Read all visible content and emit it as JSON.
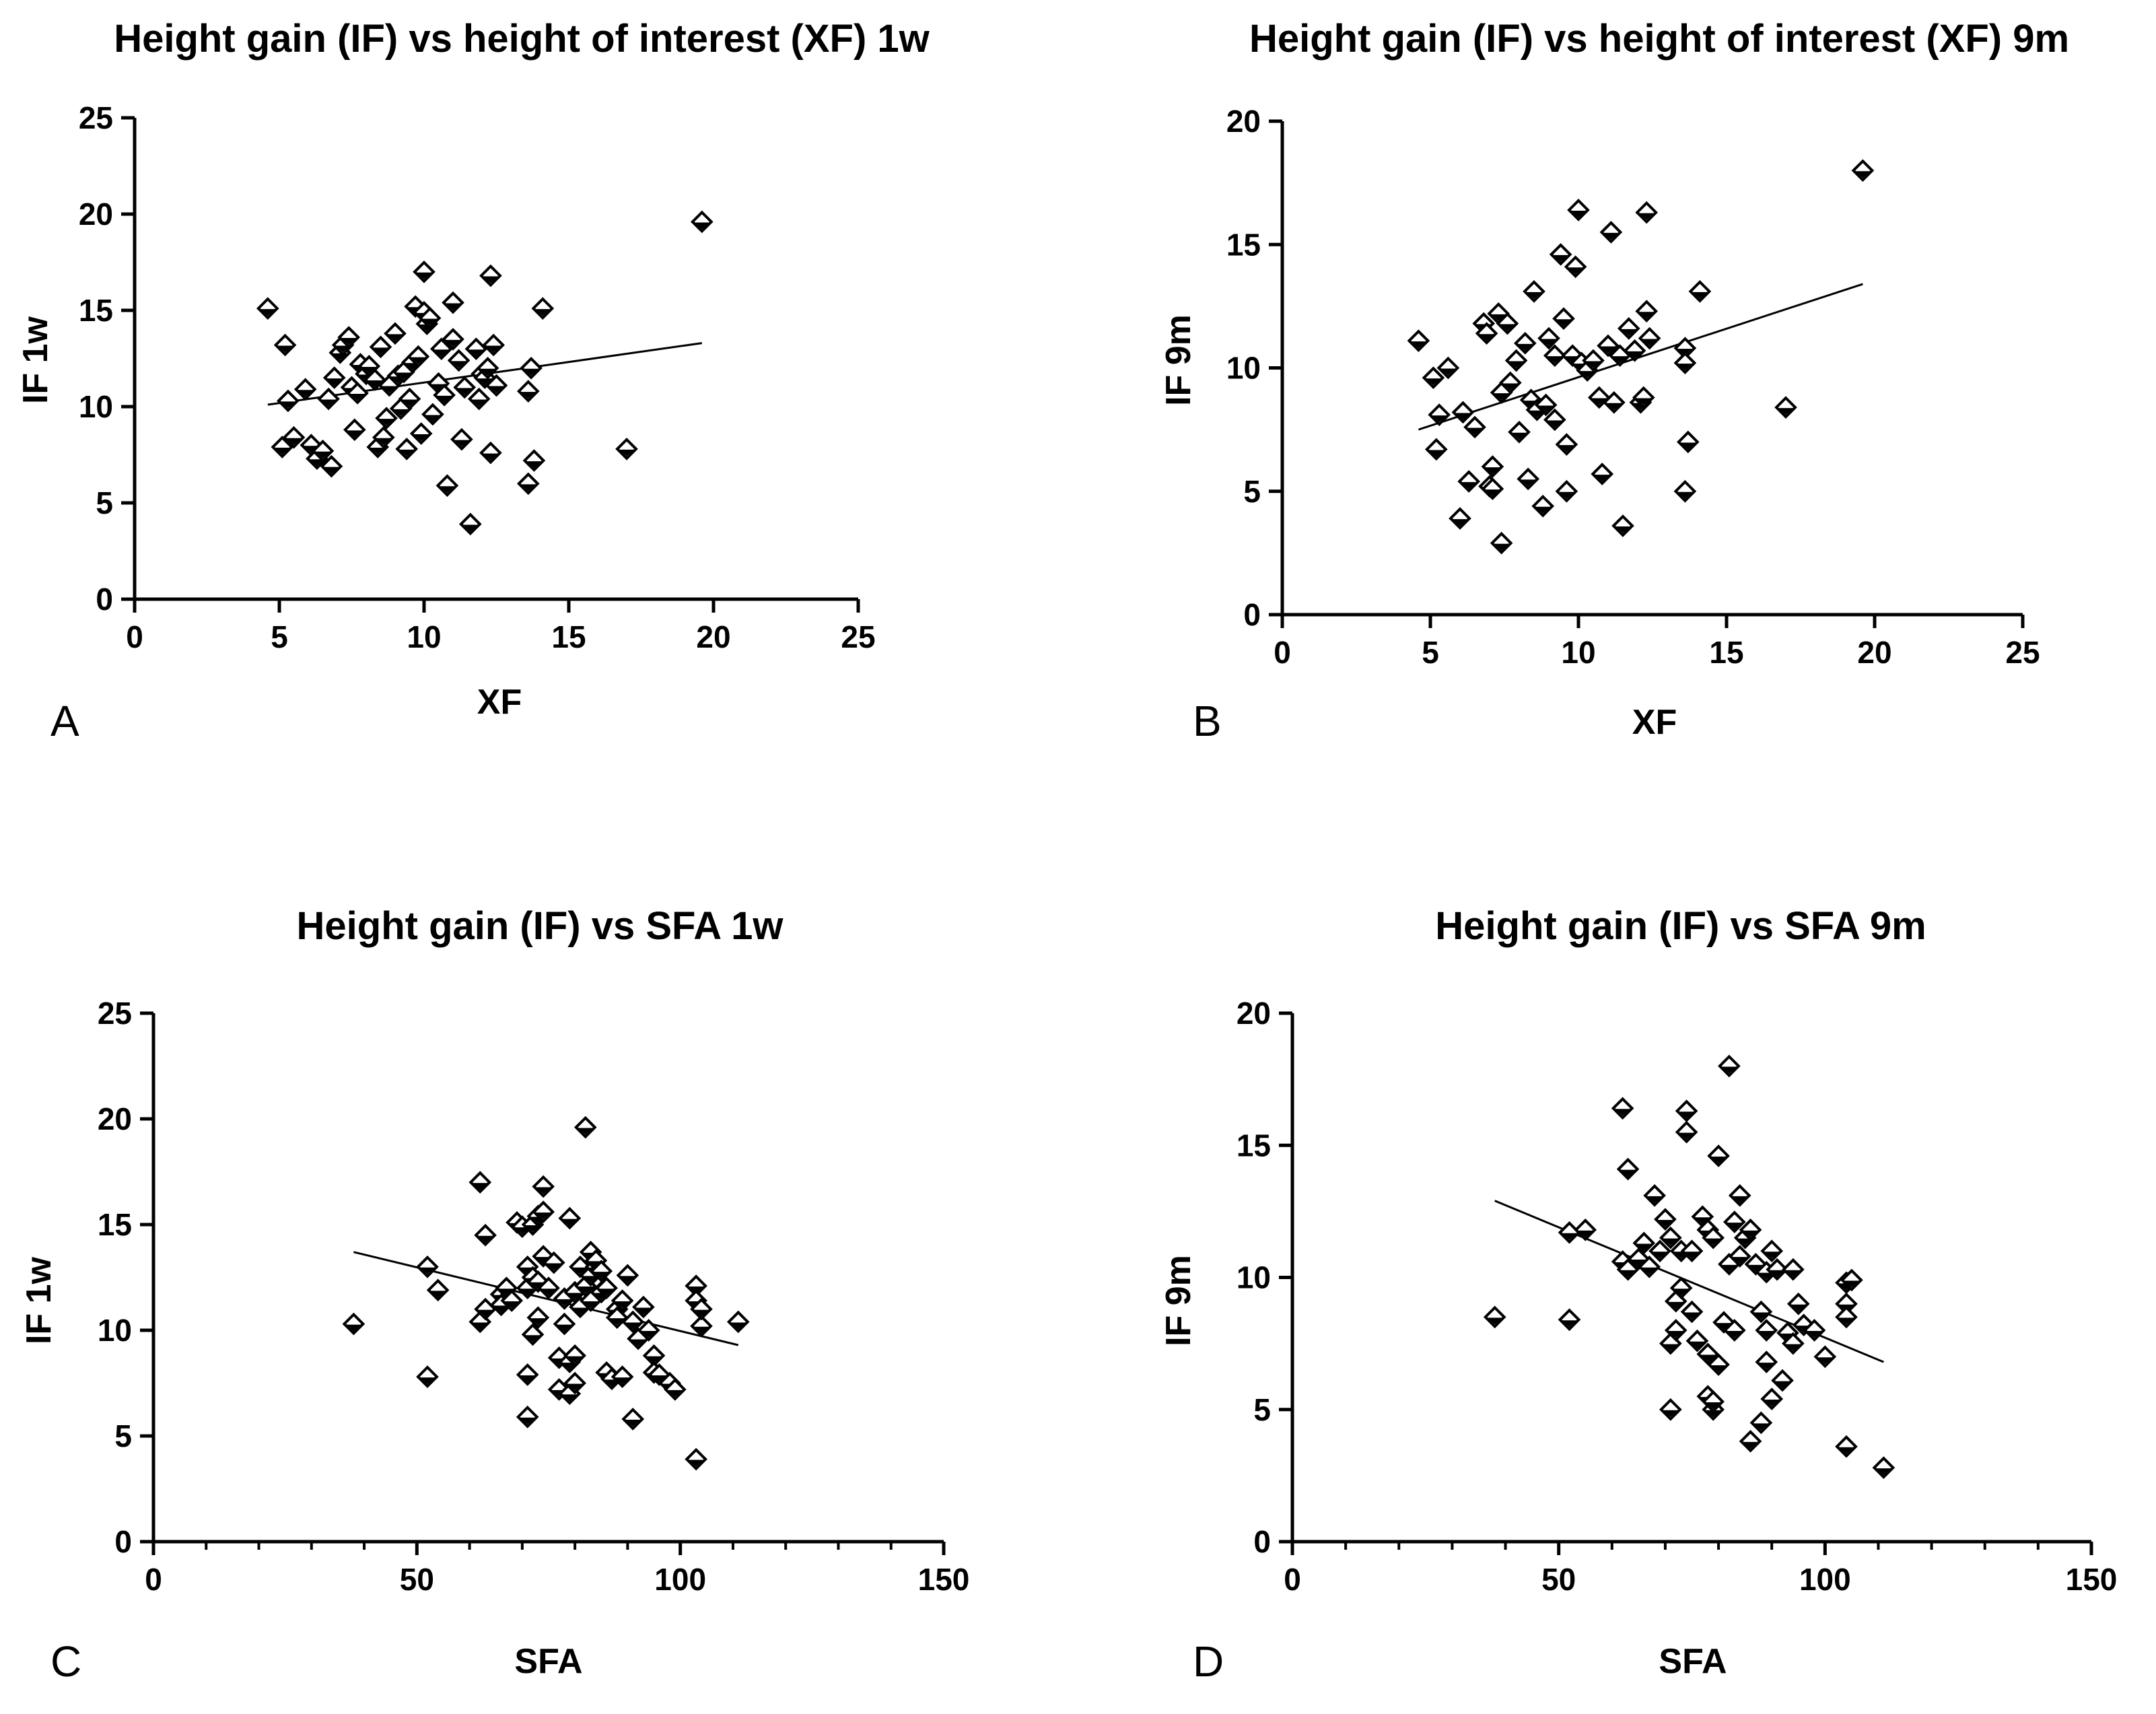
{
  "chart_data": [
    {
      "type": "scatter",
      "panel_letter": "A",
      "title": "Height gain (IF) vs height of interest (XF) 1w",
      "xlabel": "XF",
      "ylabel": "IF 1w",
      "xlim": [
        0,
        25
      ],
      "ylim": [
        0,
        25
      ],
      "xticks": [
        0,
        5,
        10,
        15,
        20,
        25
      ],
      "yticks": [
        0,
        5,
        10,
        15,
        20,
        25
      ],
      "trendline": {
        "x": [
          4.6,
          19.6
        ],
        "y": [
          10.1,
          13.3
        ]
      },
      "points": [
        [
          4.6,
          15.1
        ],
        [
          5.1,
          7.9
        ],
        [
          5.2,
          13.2
        ],
        [
          5.3,
          10.3
        ],
        [
          5.5,
          8.4
        ],
        [
          5.9,
          10.9
        ],
        [
          6.1,
          8.0
        ],
        [
          6.3,
          7.3
        ],
        [
          6.5,
          7.7
        ],
        [
          6.7,
          10.4
        ],
        [
          6.8,
          6.9
        ],
        [
          6.9,
          11.5
        ],
        [
          7.1,
          12.8
        ],
        [
          7.2,
          13.2
        ],
        [
          7.4,
          13.6
        ],
        [
          7.5,
          11.0
        ],
        [
          7.6,
          8.8
        ],
        [
          7.7,
          10.7
        ],
        [
          7.8,
          12.2
        ],
        [
          8.0,
          11.7
        ],
        [
          8.1,
          12.1
        ],
        [
          8.3,
          11.4
        ],
        [
          8.4,
          7.9
        ],
        [
          8.5,
          13.1
        ],
        [
          8.6,
          8.4
        ],
        [
          8.7,
          9.4
        ],
        [
          8.8,
          11.1
        ],
        [
          9.0,
          13.8
        ],
        [
          9.1,
          11.6
        ],
        [
          9.2,
          9.9
        ],
        [
          9.3,
          11.8
        ],
        [
          9.4,
          7.8
        ],
        [
          9.5,
          10.4
        ],
        [
          9.6,
          12.3
        ],
        [
          9.7,
          15.2
        ],
        [
          9.8,
          12.6
        ],
        [
          9.9,
          8.6
        ],
        [
          10.0,
          14.9
        ],
        [
          10.1,
          14.3
        ],
        [
          10.2,
          14.6
        ],
        [
          10.0,
          17.0
        ],
        [
          10.3,
          9.6
        ],
        [
          10.5,
          11.2
        ],
        [
          10.6,
          13.0
        ],
        [
          10.7,
          10.6
        ],
        [
          10.8,
          5.9
        ],
        [
          11.0,
          13.5
        ],
        [
          11.0,
          15.4
        ],
        [
          11.2,
          12.4
        ],
        [
          11.3,
          8.3
        ],
        [
          11.4,
          11.0
        ],
        [
          11.6,
          3.9
        ],
        [
          11.8,
          13.0
        ],
        [
          11.9,
          10.4
        ],
        [
          12.0,
          11.7
        ],
        [
          12.1,
          11.5
        ],
        [
          12.2,
          12.0
        ],
        [
          12.3,
          7.6
        ],
        [
          12.3,
          16.8
        ],
        [
          12.4,
          13.2
        ],
        [
          12.5,
          11.1
        ],
        [
          13.6,
          10.8
        ],
        [
          13.7,
          12.0
        ],
        [
          13.6,
          6.0
        ],
        [
          13.8,
          7.2
        ],
        [
          14.1,
          15.1
        ],
        [
          17.0,
          7.8
        ],
        [
          19.6,
          19.6
        ]
      ]
    },
    {
      "type": "scatter",
      "panel_letter": "B",
      "title": "Height gain (IF) vs height of interest (XF) 9m",
      "xlabel": "XF",
      "ylabel": "IF 9m",
      "xlim": [
        0,
        25
      ],
      "ylim": [
        0,
        20
      ],
      "xticks": [
        0,
        5,
        10,
        15,
        20,
        25
      ],
      "yticks": [
        0,
        5,
        10,
        15,
        20
      ],
      "trendline": {
        "x": [
          4.6,
          19.6
        ],
        "y": [
          7.5,
          13.4
        ]
      },
      "points": [
        [
          4.6,
          11.1
        ],
        [
          5.1,
          9.6
        ],
        [
          5.2,
          6.7
        ],
        [
          5.3,
          8.1
        ],
        [
          5.6,
          10.0
        ],
        [
          6.0,
          3.9
        ],
        [
          6.1,
          8.2
        ],
        [
          6.3,
          5.4
        ],
        [
          6.5,
          7.6
        ],
        [
          6.8,
          11.8
        ],
        [
          6.9,
          11.4
        ],
        [
          7.0,
          5.2
        ],
        [
          7.1,
          6.0
        ],
        [
          7.1,
          5.1
        ],
        [
          7.3,
          12.2
        ],
        [
          7.4,
          2.9
        ],
        [
          7.4,
          9.0
        ],
        [
          7.6,
          11.8
        ],
        [
          7.7,
          9.4
        ],
        [
          7.9,
          10.3
        ],
        [
          8.0,
          7.4
        ],
        [
          8.2,
          11.0
        ],
        [
          8.3,
          5.5
        ],
        [
          8.4,
          8.7
        ],
        [
          8.5,
          13.1
        ],
        [
          8.6,
          8.3
        ],
        [
          8.8,
          4.4
        ],
        [
          8.9,
          8.5
        ],
        [
          9.0,
          11.2
        ],
        [
          9.2,
          7.9
        ],
        [
          9.2,
          10.5
        ],
        [
          9.4,
          14.6
        ],
        [
          9.5,
          12.0
        ],
        [
          9.6,
          6.9
        ],
        [
          9.6,
          5.0
        ],
        [
          9.8,
          10.5
        ],
        [
          9.9,
          14.1
        ],
        [
          10.0,
          16.4
        ],
        [
          10.1,
          10.2
        ],
        [
          10.3,
          9.9
        ],
        [
          10.5,
          10.3
        ],
        [
          10.7,
          8.8
        ],
        [
          10.8,
          5.7
        ],
        [
          11.0,
          10.9
        ],
        [
          11.1,
          15.5
        ],
        [
          11.2,
          8.6
        ],
        [
          11.4,
          10.5
        ],
        [
          11.5,
          3.6
        ],
        [
          11.7,
          11.6
        ],
        [
          11.9,
          10.7
        ],
        [
          12.1,
          8.6
        ],
        [
          12.2,
          8.8
        ],
        [
          12.3,
          12.3
        ],
        [
          12.3,
          16.3
        ],
        [
          12.4,
          11.2
        ],
        [
          13.6,
          10.8
        ],
        [
          13.6,
          10.2
        ],
        [
          13.6,
          5.0
        ],
        [
          13.7,
          7.0
        ],
        [
          14.1,
          13.1
        ],
        [
          17.0,
          8.4
        ],
        [
          19.6,
          18.0
        ]
      ]
    },
    {
      "type": "scatter",
      "panel_letter": "C",
      "title": "Height gain (IF) vs SFA 1w",
      "xlabel": "SFA",
      "ylabel": "IF 1w",
      "xlim": [
        0,
        150
      ],
      "ylim": [
        0,
        25
      ],
      "xticks": [
        0,
        50,
        100,
        150
      ],
      "yticks": [
        0,
        5,
        10,
        15,
        20,
        25
      ],
      "trendline": {
        "x": [
          38,
          111
        ],
        "y": [
          13.7,
          9.3
        ]
      },
      "points": [
        [
          38,
          10.3
        ],
        [
          52,
          7.8
        ],
        [
          52,
          13.0
        ],
        [
          54,
          11.9
        ],
        [
          62,
          17.0
        ],
        [
          62,
          10.4
        ],
        [
          63,
          14.5
        ],
        [
          63,
          11.0
        ],
        [
          66,
          11.7
        ],
        [
          66,
          11.2
        ],
        [
          67,
          12.0
        ],
        [
          68,
          11.4
        ],
        [
          69,
          15.1
        ],
        [
          70,
          14.9
        ],
        [
          71,
          12.0
        ],
        [
          71,
          13.0
        ],
        [
          71,
          7.9
        ],
        [
          71,
          5.9
        ],
        [
          72,
          15.0
        ],
        [
          72,
          12.5
        ],
        [
          72,
          9.8
        ],
        [
          73,
          10.6
        ],
        [
          73,
          15.4
        ],
        [
          73,
          12.3
        ],
        [
          74,
          13.5
        ],
        [
          74,
          16.8
        ],
        [
          74,
          15.6
        ],
        [
          75,
          12.0
        ],
        [
          76,
          13.2
        ],
        [
          77,
          8.7
        ],
        [
          77,
          7.2
        ],
        [
          78,
          11.5
        ],
        [
          78,
          10.3
        ],
        [
          79,
          15.3
        ],
        [
          79,
          8.5
        ],
        [
          79,
          7.0
        ],
        [
          80,
          11.8
        ],
        [
          80,
          8.8
        ],
        [
          80,
          7.5
        ],
        [
          81,
          13.0
        ],
        [
          81,
          11.1
        ],
        [
          82,
          12.1
        ],
        [
          82,
          19.6
        ],
        [
          83,
          13.7
        ],
        [
          83,
          12.6
        ],
        [
          83,
          11.4
        ],
        [
          84,
          13.0
        ],
        [
          84,
          13.3
        ],
        [
          85,
          12.8
        ],
        [
          85,
          11.8
        ],
        [
          86,
          8.0
        ],
        [
          86,
          12.0
        ],
        [
          87,
          7.7
        ],
        [
          88,
          11.0
        ],
        [
          88,
          10.6
        ],
        [
          89,
          7.8
        ],
        [
          89,
          11.4
        ],
        [
          90,
          12.6
        ],
        [
          91,
          5.8
        ],
        [
          91,
          10.4
        ],
        [
          92,
          9.6
        ],
        [
          93,
          11.1
        ],
        [
          94,
          10.0
        ],
        [
          95,
          8.8
        ],
        [
          95,
          8.0
        ],
        [
          96,
          7.9
        ],
        [
          98,
          7.5
        ],
        [
          99,
          7.2
        ],
        [
          103,
          12.1
        ],
        [
          103,
          11.4
        ],
        [
          103,
          3.9
        ],
        [
          104,
          10.2
        ],
        [
          104,
          11.0
        ],
        [
          111,
          10.4
        ]
      ]
    },
    {
      "type": "scatter",
      "panel_letter": "D",
      "title": "Height gain (IF) vs SFA 9m",
      "xlabel": "SFA",
      "ylabel": "IF 9m",
      "xlim": [
        0,
        150
      ],
      "ylim": [
        0,
        20
      ],
      "xticks": [
        0,
        50,
        100,
        150
      ],
      "yticks": [
        0,
        5,
        10,
        15,
        20
      ],
      "trendline": {
        "x": [
          38,
          111
        ],
        "y": [
          12.9,
          6.8
        ]
      },
      "points": [
        [
          38,
          8.5
        ],
        [
          52,
          11.7
        ],
        [
          52,
          8.4
        ],
        [
          55,
          11.8
        ],
        [
          62,
          16.4
        ],
        [
          62,
          10.6
        ],
        [
          63,
          14.1
        ],
        [
          63,
          10.3
        ],
        [
          65,
          10.7
        ],
        [
          66,
          11.3
        ],
        [
          67,
          10.4
        ],
        [
          68,
          13.1
        ],
        [
          69,
          11.0
        ],
        [
          70,
          12.2
        ],
        [
          71,
          7.5
        ],
        [
          71,
          5.0
        ],
        [
          71,
          11.5
        ],
        [
          72,
          8.0
        ],
        [
          72,
          9.1
        ],
        [
          73,
          11.0
        ],
        [
          73,
          9.6
        ],
        [
          74,
          16.3
        ],
        [
          74,
          15.5
        ],
        [
          75,
          11.0
        ],
        [
          75,
          8.7
        ],
        [
          76,
          7.6
        ],
        [
          77,
          12.3
        ],
        [
          78,
          11.8
        ],
        [
          78,
          7.1
        ],
        [
          78,
          5.5
        ],
        [
          79,
          5.0
        ],
        [
          79,
          11.5
        ],
        [
          79,
          5.3
        ],
        [
          80,
          14.6
        ],
        [
          80,
          6.7
        ],
        [
          81,
          8.3
        ],
        [
          82,
          10.5
        ],
        [
          82,
          18.0
        ],
        [
          83,
          12.1
        ],
        [
          83,
          8.0
        ],
        [
          84,
          13.1
        ],
        [
          84,
          10.8
        ],
        [
          85,
          11.5
        ],
        [
          86,
          11.8
        ],
        [
          86,
          3.8
        ],
        [
          87,
          10.5
        ],
        [
          88,
          4.5
        ],
        [
          88,
          8.7
        ],
        [
          89,
          10.2
        ],
        [
          89,
          8.0
        ],
        [
          89,
          6.8
        ],
        [
          90,
          11.0
        ],
        [
          90,
          5.4
        ],
        [
          91,
          10.3
        ],
        [
          92,
          6.1
        ],
        [
          93,
          7.9
        ],
        [
          94,
          7.5
        ],
        [
          94,
          10.3
        ],
        [
          95,
          9.0
        ],
        [
          96,
          8.2
        ],
        [
          98,
          8.0
        ],
        [
          100,
          7.0
        ],
        [
          104,
          9.8
        ],
        [
          104,
          9.0
        ],
        [
          104,
          8.5
        ],
        [
          104,
          3.6
        ],
        [
          105,
          9.9
        ],
        [
          111,
          2.8
        ]
      ]
    }
  ]
}
